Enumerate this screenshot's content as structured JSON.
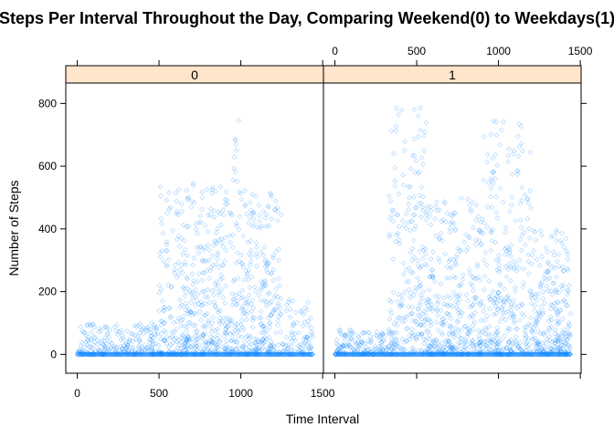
{
  "chart_data": {
    "type": "scatter",
    "title": "Steps Per Interval Throughout the Day, Comparing Weekend(0) to Weekdays(1)",
    "xlabel": "Time Interval",
    "ylabel": "Number of Steps",
    "xlim": [
      -70,
      1505
    ],
    "ylim": [
      -60,
      865
    ],
    "x_ticks": [
      0,
      500,
      1000,
      1500
    ],
    "y_ticks": [
      0,
      200,
      400,
      600,
      800
    ],
    "point_color": "#0080ff",
    "strip_color": "#ffe5cc",
    "panels": [
      {
        "strip_label": "0",
        "group": "Weekend",
        "approx_max_steps": 785,
        "activity_profile": [
          {
            "from": 0,
            "to": 500,
            "typical_max": 100
          },
          {
            "from": 500,
            "to": 950,
            "typical_max": 550
          },
          {
            "from": 950,
            "to": 1000,
            "typical_max": 785
          },
          {
            "from": 1000,
            "to": 1250,
            "typical_max": 530
          },
          {
            "from": 1250,
            "to": 1440,
            "typical_max": 180
          }
        ]
      },
      {
        "strip_label": "1",
        "group": "Weekdays",
        "approx_max_steps": 805,
        "activity_profile": [
          {
            "from": 0,
            "to": 330,
            "typical_max": 80
          },
          {
            "from": 330,
            "to": 560,
            "typical_max": 805
          },
          {
            "from": 560,
            "to": 900,
            "typical_max": 500
          },
          {
            "from": 900,
            "to": 1200,
            "typical_max": 760
          },
          {
            "from": 1200,
            "to": 1440,
            "typical_max": 400
          }
        ]
      }
    ]
  }
}
